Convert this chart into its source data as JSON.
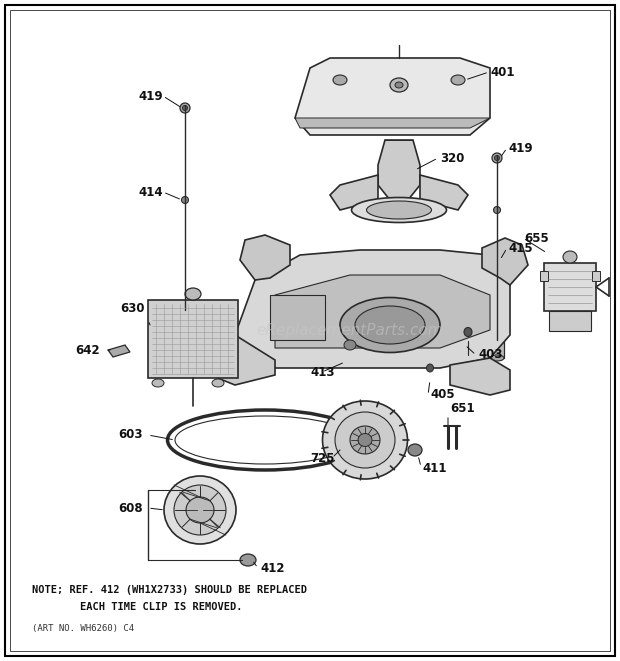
{
  "bg_color": "#ffffff",
  "border_color": "#000000",
  "diagram_color": "#2a2a2a",
  "watermark_color": "#c8c8c8",
  "watermark_text": "eReplacementParts.com",
  "note_line1": "NOTE; REF. 412 (WH1X2733) SHOULD BE REPLACED",
  "note_line2": "EACH TIME CLIP IS REMOVED.",
  "art_no": "(ART NO. WH6260) C4",
  "figsize": [
    6.2,
    6.61
  ],
  "dpi": 100
}
